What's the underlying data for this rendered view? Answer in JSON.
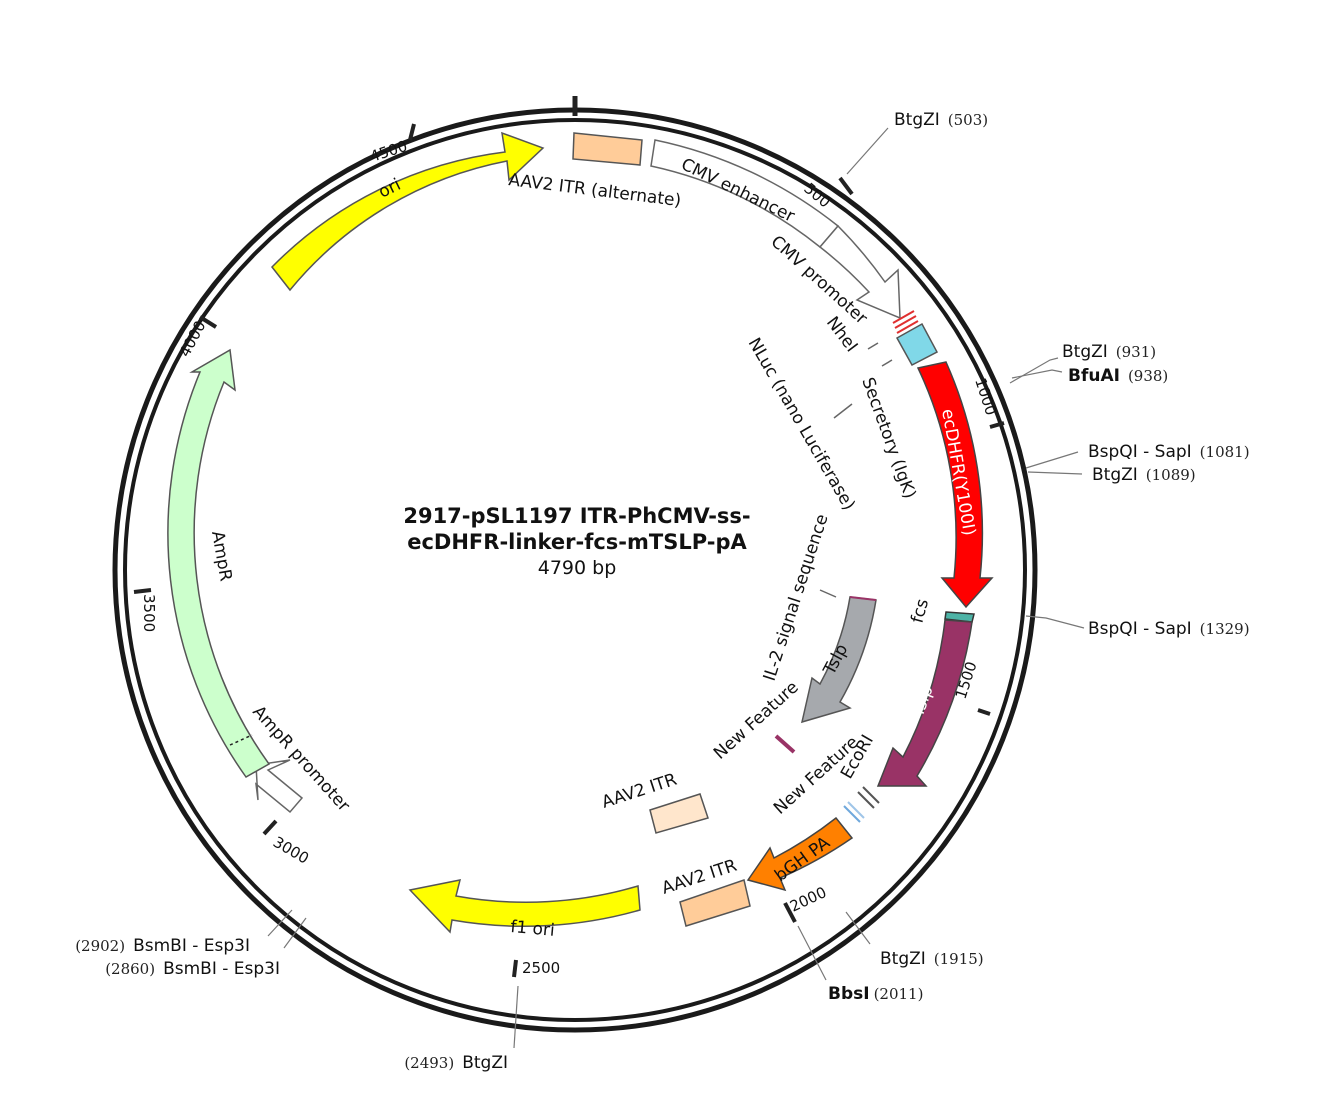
{
  "map": {
    "title_line1": "2917-pSL1197 ITR-PhCMV-ss-",
    "title_line2": "ecDHFR-linker-fcs-mTSLP-pA",
    "length": "4790 bp"
  },
  "ticks": [
    "500",
    "1000",
    "1500",
    "2000",
    "2500",
    "3000",
    "3500",
    "4000",
    "4500"
  ],
  "features": [
    {
      "name": "ori",
      "color": "#ffff00"
    },
    {
      "name": "AAV2 ITR (alternate)",
      "color": "#ffcc99"
    },
    {
      "name": "CMV enhancer",
      "color": "#ffffff"
    },
    {
      "name": "CMV promoter",
      "color": "#ffffff"
    },
    {
      "name": "Secretory (IgK)",
      "color": "#80d8e8"
    },
    {
      "name": "ecDHFR(Y100I)",
      "color": "#ff0000"
    },
    {
      "name": "fcs",
      "color": "#4db3a6"
    },
    {
      "name": "Tslp",
      "color": "#993366"
    },
    {
      "name": "bGH PA",
      "color": "#ff8000"
    },
    {
      "name": "AAV2 ITR",
      "color": "#ffcc99"
    },
    {
      "name": "f1 ori",
      "color": "#ffff00"
    },
    {
      "name": "AmpR promoter",
      "color": "#ffffff"
    },
    {
      "name": "AmpR",
      "color": "#ccffcc"
    }
  ],
  "inner_features": [
    {
      "name": "NLuc (nano Luciferase)"
    },
    {
      "name": "IL-2 signal sequence"
    },
    {
      "name": "Tslp",
      "color": "#a6a9ad"
    },
    {
      "name": "New Feature",
      "color": "#993366"
    },
    {
      "name": "AAV2 ITR",
      "color": "#ffe6cc"
    },
    {
      "name": "New Feature",
      "color": "#6fa8dc"
    },
    {
      "name": "EcoRI"
    },
    {
      "name": "NheI"
    }
  ],
  "sites": [
    {
      "name": "BtgZI",
      "pos": "(503)"
    },
    {
      "name": "BtgZI",
      "pos": "(931)"
    },
    {
      "name": "BfuAI",
      "pos": "(938)"
    },
    {
      "name": "BspQI - SapI",
      "pos": "(1081)"
    },
    {
      "name": "BtgZI",
      "pos": "(1089)"
    },
    {
      "name": "BspQI - SapI",
      "pos": "(1329)"
    },
    {
      "name": "BtgZI",
      "pos": "(1915)"
    },
    {
      "name": "BbsI",
      "pos": "(2011)"
    },
    {
      "name": "BtgZI",
      "pos": "(2493)"
    },
    {
      "name": "BsmBI - Esp3I",
      "pos": "(2860)"
    },
    {
      "name": "BsmBI - Esp3I",
      "pos": "(2902)"
    }
  ]
}
